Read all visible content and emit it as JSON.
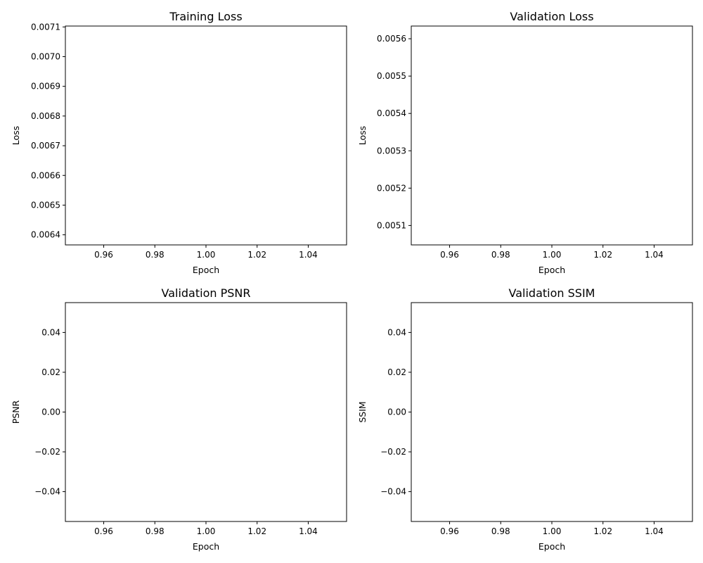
{
  "chart_data": [
    {
      "type": "line",
      "title": "Training Loss",
      "xlabel": "Epoch",
      "ylabel": "Loss",
      "xlim": [
        0.945,
        1.055
      ],
      "ylim": [
        0.006366,
        0.007103
      ],
      "xticks": [
        0.96,
        0.98,
        1.0,
        1.02,
        1.04
      ],
      "xtick_labels": [
        "0.96",
        "0.98",
        "1.00",
        "1.02",
        "1.04"
      ],
      "yticks": [
        0.0064,
        0.0065,
        0.0066,
        0.0067,
        0.0068,
        0.0069,
        0.007,
        0.0071
      ],
      "ytick_labels": [
        "0.0064",
        "0.0065",
        "0.0066",
        "0.0067",
        "0.0068",
        "0.0069",
        "0.0070",
        "0.0071"
      ],
      "series": [],
      "grid": false
    },
    {
      "type": "line",
      "title": "Validation Loss",
      "xlabel": "Epoch",
      "ylabel": "Loss",
      "xlim": [
        0.945,
        1.055
      ],
      "ylim": [
        0.005048,
        0.005634
      ],
      "xticks": [
        0.96,
        0.98,
        1.0,
        1.02,
        1.04
      ],
      "xtick_labels": [
        "0.96",
        "0.98",
        "1.00",
        "1.02",
        "1.04"
      ],
      "yticks": [
        0.0051,
        0.0052,
        0.0053,
        0.0054,
        0.0055,
        0.0056
      ],
      "ytick_labels": [
        "0.0051",
        "0.0052",
        "0.0053",
        "0.0054",
        "0.0055",
        "0.0056"
      ],
      "series": [],
      "grid": false
    },
    {
      "type": "line",
      "title": "Validation PSNR",
      "xlabel": "Epoch",
      "ylabel": "PSNR",
      "xlim": [
        0.945,
        1.055
      ],
      "ylim": [
        -0.055,
        0.055
      ],
      "xticks": [
        0.96,
        0.98,
        1.0,
        1.02,
        1.04
      ],
      "xtick_labels": [
        "0.96",
        "0.98",
        "1.00",
        "1.02",
        "1.04"
      ],
      "yticks": [
        -0.04,
        -0.02,
        0.0,
        0.02,
        0.04
      ],
      "ytick_labels": [
        "−0.04",
        "−0.02",
        "0.00",
        "0.02",
        "0.04"
      ],
      "series": [],
      "grid": false
    },
    {
      "type": "line",
      "title": "Validation SSIM",
      "xlabel": "Epoch",
      "ylabel": "SSIM",
      "xlim": [
        0.945,
        1.055
      ],
      "ylim": [
        -0.055,
        0.055
      ],
      "xticks": [
        0.96,
        0.98,
        1.0,
        1.02,
        1.04
      ],
      "xtick_labels": [
        "0.96",
        "0.98",
        "1.00",
        "1.02",
        "1.04"
      ],
      "yticks": [
        -0.04,
        -0.02,
        0.0,
        0.02,
        0.04
      ],
      "ytick_labels": [
        "−0.04",
        "−0.02",
        "0.00",
        "0.02",
        "0.04"
      ],
      "series": [],
      "grid": false
    }
  ]
}
